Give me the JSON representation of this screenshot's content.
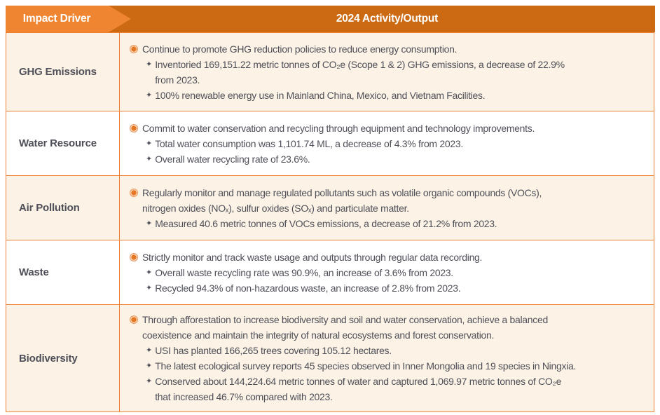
{
  "header": {
    "impact_driver": "Impact Driver",
    "activity_output": "2024 Activity/Output"
  },
  "icons": {
    "star": "✦"
  },
  "colors": {
    "header-left-bg": "#EF8531",
    "header-right-bg": "#CC6913",
    "row-cream-bg": "#FCF3E6",
    "row-white-bg": "#FFFFFF",
    "border": "#EE7F2F",
    "text": "#4E4F58",
    "bullet": "#E87722",
    "bullet-ring": "#F09A5F"
  },
  "rows": [
    {
      "driver": "GHG Emissions",
      "items": [
        {
          "kind": "main",
          "text": "Continue to promote GHG reduction policies to reduce energy consumption."
        },
        {
          "kind": "sub",
          "text": "Inventoried 169,151.22 metric tonnes of CO₂e (Scope 1 & 2) GHG emissions, a decrease of 22.9%\nfrom 2023."
        },
        {
          "kind": "sub",
          "text": "100% renewable energy use in Mainland China, Mexico, and Vietnam Facilities."
        }
      ]
    },
    {
      "driver": "Water Resource",
      "items": [
        {
          "kind": "main",
          "text": "Commit to water conservation and recycling through equipment and technology improvements."
        },
        {
          "kind": "sub",
          "text": "Total water consumption was 1,101.74 ML, a decrease of 4.3% from 2023."
        },
        {
          "kind": "sub",
          "text": "Overall water recycling rate of 23.6%."
        }
      ]
    },
    {
      "driver": "Air Pollution",
      "items": [
        {
          "kind": "main",
          "text": "Regularly monitor and manage regulated pollutants such as volatile organic compounds (VOCs),\nnitrogen oxides (NOₓ), sulfur oxides (SOₓ) and particulate matter."
        },
        {
          "kind": "sub",
          "text": "Measured 40.6 metric tonnes of VOCs emissions, a decrease of 21.2% from 2023."
        }
      ]
    },
    {
      "driver": "Waste",
      "items": [
        {
          "kind": "main",
          "text": "Strictly monitor and track waste usage and outputs through regular data recording."
        },
        {
          "kind": "sub",
          "text": "Overall waste recycling rate was 90.9%, an increase of 3.6% from 2023."
        },
        {
          "kind": "sub",
          "text": "Recycled 94.3% of non-hazardous waste, an increase of 2.8% from 2023."
        }
      ]
    },
    {
      "driver": "Biodiversity",
      "items": [
        {
          "kind": "main",
          "text": "Through afforestation to increase biodiversity and soil and water conservation, achieve a balanced\ncoexistence and maintain the integrity of natural ecosystems and forest conservation."
        },
        {
          "kind": "sub",
          "text": "USI has planted 166,265 trees covering 105.12 hectares."
        },
        {
          "kind": "sub",
          "text": "The latest ecological survey reports 45 species observed in Inner Mongolia and 19 species in Ningxia."
        },
        {
          "kind": "sub",
          "text": "Conserved about 144,224.64 metric tonnes of water and captured 1,069.97 metric tonnes of CO₂e\nthat increased 46.7% compared with 2023."
        }
      ]
    }
  ]
}
